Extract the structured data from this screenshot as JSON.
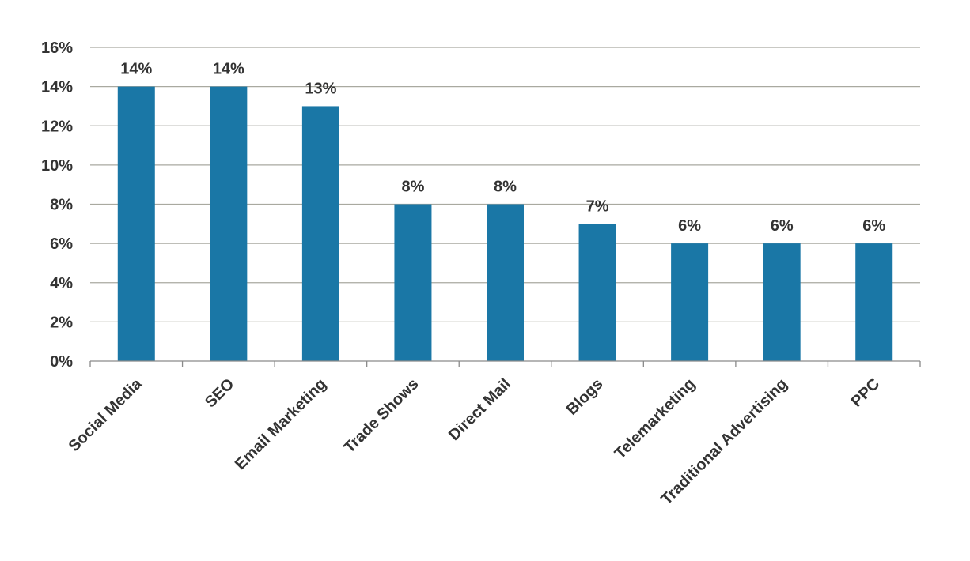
{
  "chart_data": {
    "type": "bar",
    "title": "",
    "xlabel": "",
    "ylabel": "",
    "categories": [
      "Social Media",
      "SEO",
      "Email Marketing",
      "Trade Shows",
      "Direct Mail",
      "Blogs",
      "Telemarketing",
      "Traditional Advertising",
      "PPC"
    ],
    "values": [
      14,
      14,
      13,
      8,
      8,
      7,
      6,
      6,
      6
    ],
    "data_labels": [
      "14%",
      "14%",
      "13%",
      "8%",
      "8%",
      "7%",
      "6%",
      "6%",
      "6%"
    ],
    "ylim": [
      0,
      16
    ],
    "y_ticks": [
      0,
      2,
      4,
      6,
      8,
      10,
      12,
      14,
      16
    ],
    "y_tick_labels": [
      "0%",
      "2%",
      "4%",
      "6%",
      "8%",
      "10%",
      "12%",
      "14%",
      "16%"
    ],
    "grid": true,
    "legend": "none",
    "bar_color": "#1a77a6"
  }
}
